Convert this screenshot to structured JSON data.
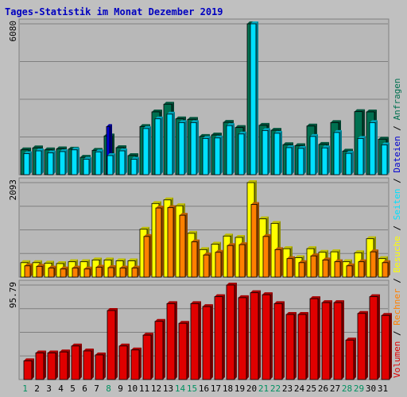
{
  "title": "Tages-Statistik im Monat Dezember 2019",
  "colors": {
    "background": "#C0C0C0",
    "title": "#0000C0",
    "anfragen": "#007050",
    "dateien": "#0000D0",
    "seiten": "#00E0FF",
    "besuche": "#FFFF00",
    "rechner": "#FF8000",
    "volumen": "#E00000",
    "weekday_label": "#000000",
    "weekend_label": "#009060"
  },
  "chart_data": {
    "type": "bar",
    "x": [
      "1",
      "2",
      "3",
      "4",
      "5",
      "6",
      "7",
      "8",
      "9",
      "10",
      "11",
      "12",
      "13",
      "14",
      "15",
      "16",
      "17",
      "18",
      "19",
      "20",
      "21",
      "22",
      "23",
      "24",
      "25",
      "26",
      "27",
      "28",
      "29",
      "30",
      "31"
    ],
    "weekend": [
      true,
      false,
      false,
      false,
      false,
      false,
      false,
      true,
      false,
      false,
      false,
      false,
      false,
      true,
      true,
      false,
      false,
      false,
      false,
      false,
      true,
      true,
      false,
      false,
      false,
      false,
      false,
      true,
      true,
      false,
      false
    ],
    "panels": [
      {
        "name": "requests",
        "max_label": "6080",
        "ymax": 6080,
        "series": [
          {
            "name": "Anfragen",
            "color": "#007050",
            "values": [
              1000,
              1080,
              1000,
              1040,
              1030,
              700,
              980,
              1560,
              1090,
              770,
              1940,
              2530,
              2840,
              2250,
              2230,
              1540,
              1600,
              2110,
              1900,
              6080,
              1990,
              1790,
              1210,
              1170,
              1960,
              1220,
              2100,
              950,
              2540,
              2530,
              1430
            ]
          },
          {
            "name": "Dateien",
            "color": "#0000D0",
            "values": [
              0,
              0,
              0,
              0,
              0,
              0,
              0,
              1940,
              0,
              0,
              0,
              0,
              0,
              0,
              0,
              0,
              0,
              0,
              0,
              0,
              0,
              0,
              0,
              0,
              0,
              0,
              0,
              0,
              0,
              0,
              0
            ]
          },
          {
            "name": "Seiten",
            "color": "#00E0FF",
            "values": [
              850,
              960,
              880,
              930,
              1000,
              620,
              920,
              770,
              960,
              620,
              1860,
              2250,
              2440,
              2100,
              2100,
              1460,
              1480,
              1980,
              1640,
              6080,
              1780,
              1670,
              1090,
              1060,
              1540,
              1080,
              1700,
              860,
              1460,
              2100,
              1200
            ]
          }
        ]
      },
      {
        "name": "visits",
        "max_label": "2093",
        "ymax": 2093,
        "series": [
          {
            "name": "Besuche",
            "color": "#FFFF00",
            "values": [
              320,
              320,
              310,
              300,
              340,
              340,
              380,
              380,
              360,
              360,
              1060,
              1630,
              1710,
              1580,
              970,
              610,
              730,
              910,
              880,
              2093,
              1290,
              1190,
              630,
              430,
              630,
              550,
              560,
              340,
              540,
              850,
              410
            ]
          },
          {
            "name": "Rechner",
            "color": "#FF8000",
            "values": [
              250,
              240,
              200,
              180,
              200,
              180,
              220,
              210,
              200,
              200,
              900,
              1530,
              1540,
              1370,
              780,
              490,
              550,
              700,
              720,
              1610,
              900,
              610,
              410,
              320,
              470,
              380,
              340,
              250,
              340,
              560,
              320
            ]
          }
        ]
      },
      {
        "name": "volume",
        "max_label": "95.79",
        "ymax": 95.79,
        "series": [
          {
            "name": "Volumen",
            "color": "#E00000",
            "values": [
              19,
              27,
              27,
              28,
              34,
              29,
              25,
              70,
              34,
              30,
              45,
              59,
              77,
              57,
              77,
              74,
              84,
              95.79,
              83,
              88,
              86,
              77,
              66,
              66,
              82,
              78,
              78,
              40,
              67,
              84,
              65
            ]
          }
        ]
      }
    ],
    "legend": [
      {
        "label": "Volumen",
        "color": "#E00000"
      },
      {
        "label": "Rechner",
        "color": "#FF8000"
      },
      {
        "label": "Besuche",
        "color": "#FFFF00"
      },
      {
        "label": "Seiten",
        "color": "#00E0FF"
      },
      {
        "label": "Dateien",
        "color": "#0000D0"
      },
      {
        "label": "Anfragen",
        "color": "#007050"
      }
    ],
    "legend_separator": " / ",
    "legend_placement": "right-vertical",
    "grid": true
  }
}
